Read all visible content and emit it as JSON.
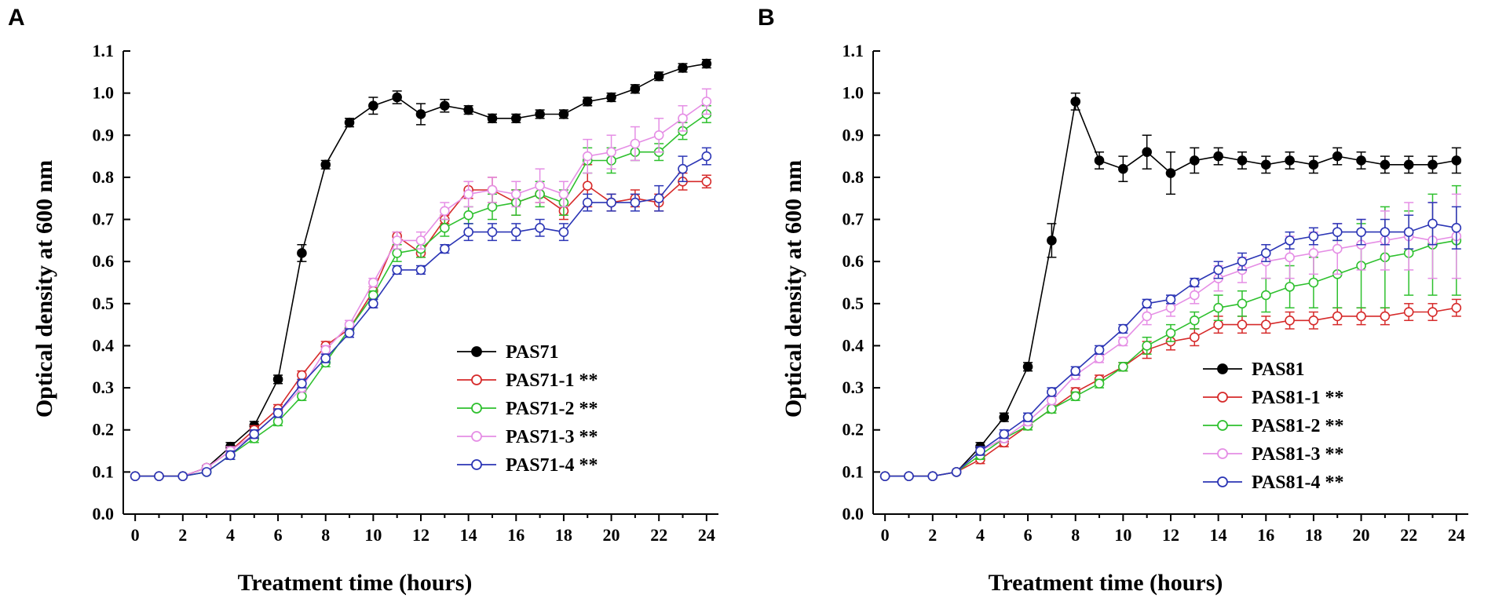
{
  "chart_data": [
    {
      "panel": "A",
      "type": "line",
      "xlabel": "Treatment time (hours)",
      "ylabel": "Optical density at 600 nm",
      "xlim": [
        -0.5,
        24.5
      ],
      "ylim": [
        0.0,
        1.1
      ],
      "xticks": [
        0,
        2,
        4,
        6,
        8,
        10,
        12,
        14,
        16,
        18,
        20,
        22,
        24
      ],
      "yticks": [
        0.0,
        0.1,
        0.2,
        0.3,
        0.4,
        0.5,
        0.6,
        0.7,
        0.8,
        0.9,
        1.0,
        1.1
      ],
      "x": [
        0,
        1,
        2,
        3,
        4,
        5,
        6,
        7,
        8,
        9,
        10,
        11,
        12,
        13,
        14,
        15,
        16,
        17,
        18,
        19,
        20,
        21,
        22,
        23,
        24
      ],
      "legend_position": "bottom-right",
      "series": [
        {
          "name": "PAS71",
          "color": "#000000",
          "marker": "filled-circle",
          "values": [
            0.09,
            0.09,
            0.09,
            0.11,
            0.16,
            0.21,
            0.32,
            0.62,
            0.83,
            0.93,
            0.97,
            0.99,
            0.95,
            0.97,
            0.96,
            0.94,
            0.94,
            0.95,
            0.95,
            0.98,
            0.99,
            1.01,
            1.04,
            1.06,
            1.07
          ],
          "errors": [
            0,
            0,
            0,
            0.005,
            0.01,
            0.01,
            0.01,
            0.02,
            0.01,
            0.01,
            0.02,
            0.015,
            0.025,
            0.015,
            0.01,
            0.01,
            0.01,
            0.01,
            0.01,
            0.01,
            0.01,
            0.01,
            0.01,
            0.01,
            0.01
          ]
        },
        {
          "name": "PAS71-1 **",
          "color": "#d62a2a",
          "marker": "open-circle",
          "values": [
            0.09,
            0.09,
            0.09,
            0.11,
            0.15,
            0.2,
            0.25,
            0.33,
            0.4,
            0.44,
            0.53,
            0.66,
            0.62,
            0.7,
            0.77,
            0.77,
            0.74,
            0.76,
            0.72,
            0.78,
            0.74,
            0.75,
            0.74,
            0.79,
            0.79
          ],
          "errors": [
            0,
            0,
            0,
            0,
            0.01,
            0.01,
            0.01,
            0.01,
            0.01,
            0.01,
            0.01,
            0.01,
            0.01,
            0.01,
            0.02,
            0.03,
            0.03,
            0.02,
            0.02,
            0.05,
            0.02,
            0.02,
            0.02,
            0.02,
            0.015
          ]
        },
        {
          "name": "PAS71-2 **",
          "color": "#2ec02e",
          "marker": "open-circle",
          "values": [
            0.09,
            0.09,
            0.09,
            0.1,
            0.14,
            0.18,
            0.22,
            0.28,
            0.36,
            0.44,
            0.52,
            0.62,
            0.63,
            0.68,
            0.71,
            0.73,
            0.74,
            0.76,
            0.74,
            0.84,
            0.84,
            0.86,
            0.86,
            0.91,
            0.95
          ],
          "errors": [
            0,
            0,
            0,
            0,
            0.01,
            0.01,
            0.01,
            0.01,
            0.01,
            0.01,
            0.01,
            0.02,
            0.02,
            0.02,
            0.02,
            0.03,
            0.03,
            0.03,
            0.03,
            0.03,
            0.03,
            0.02,
            0.02,
            0.02,
            0.02
          ]
        },
        {
          "name": "PAS71-3 **",
          "color": "#e58ee5",
          "marker": "open-circle",
          "values": [
            0.09,
            0.09,
            0.09,
            0.11,
            0.15,
            0.19,
            0.24,
            0.3,
            0.39,
            0.45,
            0.55,
            0.65,
            0.65,
            0.72,
            0.76,
            0.77,
            0.76,
            0.78,
            0.76,
            0.85,
            0.86,
            0.88,
            0.9,
            0.94,
            0.98
          ],
          "errors": [
            0,
            0,
            0,
            0,
            0.01,
            0.01,
            0.01,
            0.01,
            0.01,
            0.01,
            0.01,
            0.02,
            0.02,
            0.02,
            0.03,
            0.03,
            0.03,
            0.04,
            0.03,
            0.04,
            0.04,
            0.04,
            0.04,
            0.03,
            0.03
          ]
        },
        {
          "name": "PAS71-4 **",
          "color": "#2b35b5",
          "marker": "open-circle",
          "values": [
            0.09,
            0.09,
            0.09,
            0.1,
            0.14,
            0.19,
            0.24,
            0.31,
            0.37,
            0.43,
            0.5,
            0.58,
            0.58,
            0.63,
            0.67,
            0.67,
            0.67,
            0.68,
            0.67,
            0.74,
            0.74,
            0.74,
            0.75,
            0.82,
            0.85
          ],
          "errors": [
            0,
            0,
            0,
            0,
            0.01,
            0.01,
            0.01,
            0.01,
            0.01,
            0.01,
            0.01,
            0.01,
            0.01,
            0.01,
            0.02,
            0.02,
            0.02,
            0.02,
            0.02,
            0.02,
            0.02,
            0.02,
            0.03,
            0.03,
            0.02
          ]
        }
      ]
    },
    {
      "panel": "B",
      "type": "line",
      "xlabel": "Treatment time (hours)",
      "ylabel": "Optical density at 600 nm",
      "xlim": [
        -0.5,
        24.5
      ],
      "ylim": [
        0.0,
        1.1
      ],
      "xticks": [
        0,
        2,
        4,
        6,
        8,
        10,
        12,
        14,
        16,
        18,
        20,
        22,
        24
      ],
      "yticks": [
        0.0,
        0.1,
        0.2,
        0.3,
        0.4,
        0.5,
        0.6,
        0.7,
        0.8,
        0.9,
        1.0,
        1.1
      ],
      "x": [
        0,
        1,
        2,
        3,
        4,
        5,
        6,
        7,
        8,
        9,
        10,
        11,
        12,
        13,
        14,
        15,
        16,
        17,
        18,
        19,
        20,
        21,
        22,
        23,
        24
      ],
      "legend_position": "bottom-right",
      "series": [
        {
          "name": "PAS81",
          "color": "#000000",
          "marker": "filled-circle",
          "values": [
            0.09,
            0.09,
            0.09,
            0.1,
            0.16,
            0.23,
            0.35,
            0.65,
            0.98,
            0.84,
            0.82,
            0.86,
            0.81,
            0.84,
            0.85,
            0.84,
            0.83,
            0.84,
            0.83,
            0.85,
            0.84,
            0.83,
            0.83,
            0.83,
            0.84
          ],
          "errors": [
            0,
            0,
            0,
            0,
            0.01,
            0.01,
            0.01,
            0.04,
            0.02,
            0.02,
            0.03,
            0.04,
            0.05,
            0.03,
            0.02,
            0.02,
            0.02,
            0.02,
            0.02,
            0.02,
            0.02,
            0.02,
            0.02,
            0.02,
            0.03
          ]
        },
        {
          "name": "PAS81-1 **",
          "color": "#d62a2a",
          "marker": "open-circle",
          "values": [
            0.09,
            0.09,
            0.09,
            0.1,
            0.13,
            0.17,
            0.21,
            0.25,
            0.29,
            0.32,
            0.35,
            0.39,
            0.41,
            0.42,
            0.45,
            0.45,
            0.45,
            0.46,
            0.46,
            0.47,
            0.47,
            0.47,
            0.48,
            0.48,
            0.49
          ],
          "errors": [
            0,
            0,
            0,
            0,
            0.01,
            0.01,
            0.01,
            0.01,
            0.01,
            0.01,
            0.01,
            0.02,
            0.02,
            0.02,
            0.02,
            0.02,
            0.02,
            0.02,
            0.02,
            0.02,
            0.02,
            0.02,
            0.02,
            0.02,
            0.02
          ]
        },
        {
          "name": "PAS81-2 **",
          "color": "#2ec02e",
          "marker": "open-circle",
          "values": [
            0.09,
            0.09,
            0.09,
            0.1,
            0.14,
            0.18,
            0.21,
            0.25,
            0.28,
            0.31,
            0.35,
            0.4,
            0.43,
            0.46,
            0.49,
            0.5,
            0.52,
            0.54,
            0.55,
            0.57,
            0.59,
            0.61,
            0.62,
            0.64,
            0.65
          ],
          "errors": [
            0,
            0,
            0,
            0,
            0.01,
            0.01,
            0.01,
            0.01,
            0.01,
            0.01,
            0.01,
            0.02,
            0.02,
            0.02,
            0.03,
            0.03,
            0.04,
            0.05,
            0.06,
            0.08,
            0.1,
            0.12,
            0.1,
            0.12,
            0.13
          ]
        },
        {
          "name": "PAS81-3 **",
          "color": "#e58ee5",
          "marker": "open-circle",
          "values": [
            0.09,
            0.09,
            0.09,
            0.1,
            0.15,
            0.18,
            0.22,
            0.27,
            0.33,
            0.37,
            0.41,
            0.47,
            0.49,
            0.52,
            0.56,
            0.58,
            0.6,
            0.61,
            0.62,
            0.63,
            0.64,
            0.65,
            0.66,
            0.65,
            0.66
          ],
          "errors": [
            0,
            0,
            0,
            0,
            0.01,
            0.01,
            0.01,
            0.01,
            0.01,
            0.01,
            0.01,
            0.02,
            0.02,
            0.02,
            0.03,
            0.03,
            0.04,
            0.05,
            0.05,
            0.06,
            0.06,
            0.07,
            0.08,
            0.09,
            0.1
          ]
        },
        {
          "name": "PAS81-4 **",
          "color": "#2b35b5",
          "marker": "open-circle",
          "values": [
            0.09,
            0.09,
            0.09,
            0.1,
            0.15,
            0.19,
            0.23,
            0.29,
            0.34,
            0.39,
            0.44,
            0.5,
            0.51,
            0.55,
            0.58,
            0.6,
            0.62,
            0.65,
            0.66,
            0.67,
            0.67,
            0.67,
            0.67,
            0.69,
            0.68
          ],
          "errors": [
            0,
            0,
            0,
            0,
            0.01,
            0.01,
            0.01,
            0.01,
            0.01,
            0.01,
            0.01,
            0.01,
            0.01,
            0.01,
            0.02,
            0.02,
            0.02,
            0.02,
            0.02,
            0.02,
            0.03,
            0.03,
            0.04,
            0.05,
            0.05
          ]
        }
      ]
    }
  ]
}
